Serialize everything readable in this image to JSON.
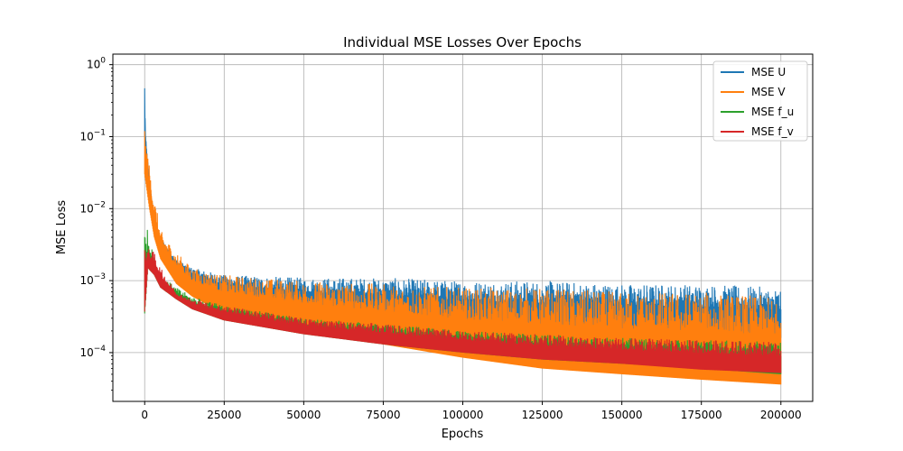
{
  "chart_data": {
    "type": "line",
    "title": "Individual MSE Losses Over Epochs",
    "xlabel": "Epochs",
    "ylabel": "MSE Loss",
    "xlim": [
      -10000,
      210000
    ],
    "ylim": [
      2.1e-05,
      1.4
    ],
    "yscale": "log",
    "grid": true,
    "legend_position": "top-right",
    "x_ticks": [
      0,
      25000,
      50000,
      75000,
      100000,
      125000,
      150000,
      175000,
      200000
    ],
    "x_tick_labels": [
      "0",
      "25000",
      "50000",
      "75000",
      "100000",
      "125000",
      "150000",
      "175000",
      "200000"
    ],
    "y_ticks": [
      0.0001,
      0.001,
      0.01,
      0.1,
      1
    ],
    "y_tick_labels": [
      {
        "base": "10",
        "exp": "−4"
      },
      {
        "base": "10",
        "exp": "−3"
      },
      {
        "base": "10",
        "exp": "−2"
      },
      {
        "base": "10",
        "exp": "−1"
      },
      {
        "base": "10",
        "exp": "0"
      }
    ],
    "series": [
      {
        "name": "MSE U",
        "color": "#1f77b4",
        "upper": [
          [
            0,
            0.8
          ],
          [
            300,
            0.1
          ],
          [
            1500,
            0.025
          ],
          [
            3000,
            0.008
          ],
          [
            5000,
            0.004
          ],
          [
            10000,
            0.002
          ],
          [
            15000,
            0.0015
          ],
          [
            25000,
            0.0012
          ],
          [
            50000,
            0.0011
          ],
          [
            75000,
            0.0011
          ],
          [
            100000,
            0.001
          ],
          [
            125000,
            0.001
          ],
          [
            150000,
            0.0009
          ],
          [
            175000,
            0.0009
          ],
          [
            200000,
            0.0008
          ]
        ],
        "lower": [
          [
            0,
            0.1
          ],
          [
            1500,
            0.02
          ],
          [
            3000,
            0.006
          ],
          [
            5000,
            0.003
          ],
          [
            10000,
            0.0015
          ],
          [
            15000,
            0.001
          ],
          [
            25000,
            0.0006
          ],
          [
            50000,
            0.0004
          ],
          [
            75000,
            0.0003
          ],
          [
            100000,
            0.00025
          ],
          [
            125000,
            0.0002
          ],
          [
            150000,
            0.0002
          ],
          [
            175000,
            0.00018
          ],
          [
            200000,
            0.00016
          ]
        ]
      },
      {
        "name": "MSE V",
        "color": "#ff7f0e",
        "upper": [
          [
            0,
            0.12
          ],
          [
            1500,
            0.04
          ],
          [
            3000,
            0.015
          ],
          [
            5000,
            0.005
          ],
          [
            10000,
            0.0025
          ],
          [
            15000,
            0.0015
          ],
          [
            25000,
            0.0012
          ],
          [
            50000,
            0.001
          ],
          [
            75000,
            0.0009
          ],
          [
            100000,
            0.0008
          ],
          [
            125000,
            0.0008
          ],
          [
            150000,
            0.0007
          ],
          [
            175000,
            0.0007
          ],
          [
            200000,
            0.0006
          ]
        ],
        "lower": [
          [
            0,
            0.03
          ],
          [
            1500,
            0.01
          ],
          [
            3000,
            0.004
          ],
          [
            5000,
            0.002
          ],
          [
            10000,
            0.0009
          ],
          [
            15000,
            0.0006
          ],
          [
            25000,
            0.00035
          ],
          [
            50000,
            0.0002
          ],
          [
            75000,
            0.00013
          ],
          [
            100000,
            8.5e-05
          ],
          [
            125000,
            6e-05
          ],
          [
            150000,
            5e-05
          ],
          [
            175000,
            4.2e-05
          ],
          [
            200000,
            3.6e-05
          ]
        ]
      },
      {
        "name": "MSE f_u",
        "color": "#2ca02c",
        "upper": [
          [
            0,
            0.0065
          ],
          [
            1000,
            0.005
          ],
          [
            3000,
            0.002
          ],
          [
            5000,
            0.0012
          ],
          [
            10000,
            0.0008
          ],
          [
            15000,
            0.0006
          ],
          [
            25000,
            0.00045
          ],
          [
            50000,
            0.0003
          ],
          [
            75000,
            0.00025
          ],
          [
            100000,
            0.0002
          ],
          [
            125000,
            0.00018
          ],
          [
            150000,
            0.00016
          ],
          [
            175000,
            0.00015
          ],
          [
            200000,
            0.00014
          ]
        ],
        "lower": [
          [
            0,
            0.00035
          ],
          [
            1000,
            0.0015
          ],
          [
            3000,
            0.0012
          ],
          [
            5000,
            0.0008
          ],
          [
            10000,
            0.00055
          ],
          [
            15000,
            0.0004
          ],
          [
            25000,
            0.00028
          ],
          [
            50000,
            0.00018
          ],
          [
            75000,
            0.00013
          ],
          [
            100000,
            0.0001
          ],
          [
            125000,
            8e-05
          ],
          [
            150000,
            7e-05
          ],
          [
            175000,
            6e-05
          ],
          [
            200000,
            5e-05
          ]
        ]
      },
      {
        "name": "MSE f_v",
        "color": "#d62728",
        "upper": [
          [
            0,
            0.005
          ],
          [
            1000,
            0.0028
          ],
          [
            3000,
            0.0025
          ],
          [
            5000,
            0.0015
          ],
          [
            10000,
            0.0007
          ],
          [
            15000,
            0.00055
          ],
          [
            25000,
            0.00045
          ],
          [
            50000,
            0.0003
          ],
          [
            75000,
            0.00025
          ],
          [
            100000,
            0.0002
          ],
          [
            125000,
            0.00018
          ],
          [
            150000,
            0.00016
          ],
          [
            175000,
            0.00015
          ],
          [
            200000,
            0.00014
          ]
        ],
        "lower": [
          [
            0,
            0.00037
          ],
          [
            1000,
            0.0015
          ],
          [
            3000,
            0.0012
          ],
          [
            5000,
            0.0008
          ],
          [
            10000,
            0.00055
          ],
          [
            15000,
            0.0004
          ],
          [
            25000,
            0.00028
          ],
          [
            50000,
            0.00018
          ],
          [
            75000,
            0.00013
          ],
          [
            100000,
            0.0001
          ],
          [
            125000,
            8e-05
          ],
          [
            150000,
            7e-05
          ],
          [
            175000,
            5.8e-05
          ],
          [
            200000,
            5.2e-05
          ]
        ]
      }
    ]
  }
}
